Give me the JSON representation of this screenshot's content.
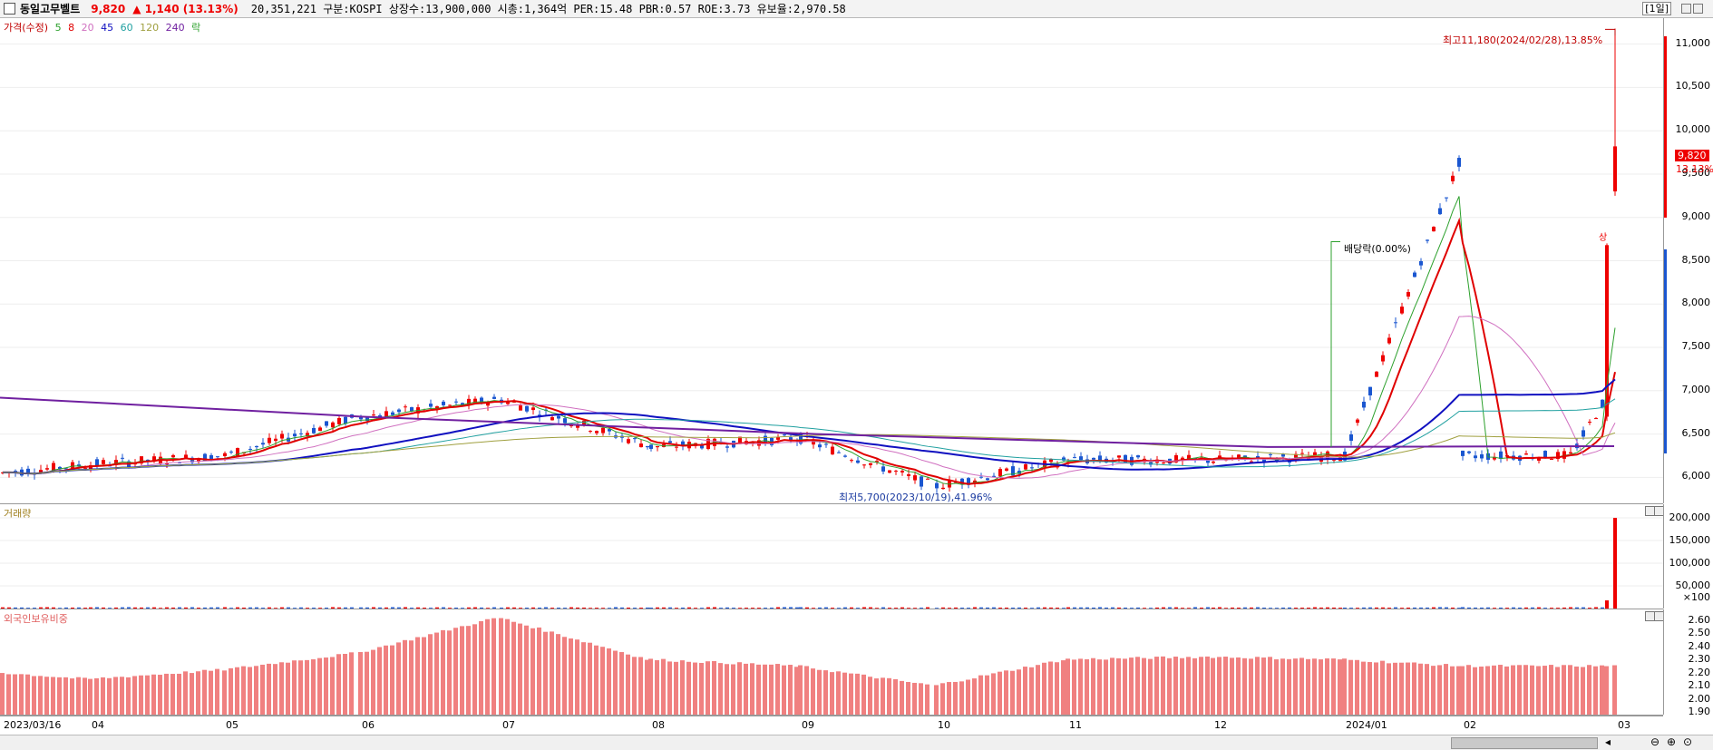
{
  "header": {
    "name": "동일고무벨트",
    "price": "9,820",
    "change": "▲ 1,140 (13.13%)",
    "info": "20,351,221  구분:KOSPI 상장수:13,900,000 시총:1,364억 PER:15.48 PBR:0.57 ROE:3.73 유보율:2,970.58",
    "period": "[1일]"
  },
  "price_panel": {
    "legend": {
      "title": "가격(수정)",
      "ma": [
        {
          "label": "5",
          "color": "#2ca02c"
        },
        {
          "label": "8",
          "color": "#e00000"
        },
        {
          "label": "20",
          "color": "#d070c0"
        },
        {
          "label": "45",
          "color": "#1010c0"
        },
        {
          "label": "60",
          "color": "#20a0a0"
        },
        {
          "label": "120",
          "color": "#a0a040"
        },
        {
          "label": "240",
          "color": "#7020a0"
        }
      ],
      "suffix": "락"
    },
    "ticks": [
      "11,000",
      "10,500",
      "10,000",
      "9,500",
      "9,000",
      "8,500",
      "8,000",
      "7,500",
      "7,000",
      "6,500",
      "6,000"
    ],
    "tick_values": [
      11000,
      10500,
      10000,
      9500,
      9000,
      8500,
      8000,
      7500,
      7000,
      6500,
      6000
    ],
    "high_label": "최고11,180(2024/02/28),13.85%",
    "low_label": "최저5,700(2023/10/19),41.96%",
    "dividend_label": "배당락(0.00%)",
    "current_price": "9,820",
    "current_pct": "13.13%",
    "up_mark": "상"
  },
  "volume_panel": {
    "legend": "거래량",
    "ticks": [
      "200,000",
      "150,000",
      "100,000",
      "50,000",
      "×100"
    ],
    "tick_values": [
      200000,
      150000,
      100000,
      50000
    ]
  },
  "foreign_panel": {
    "legend": "외국인보유비중",
    "ticks": [
      "2.60",
      "2.50",
      "2.40",
      "2.30",
      "2.20",
      "2.10",
      "2.00",
      "1.90"
    ],
    "tick_values": [
      2.6,
      2.5,
      2.4,
      2.3,
      2.2,
      2.1,
      2.0,
      1.9
    ]
  },
  "x_axis": [
    "2023/03/16",
    "04",
    "05",
    "06",
    "07",
    "08",
    "09",
    "10",
    "11",
    "12",
    "2024/01",
    "02",
    "03"
  ],
  "chart_data": {
    "type": "candlestick",
    "x": [
      "2023/03",
      "2023/04",
      "2023/05",
      "2023/06",
      "2023/07",
      "2023/08",
      "2023/09",
      "2023/10",
      "2023/11",
      "2023/12",
      "2024/01",
      "2024/02"
    ],
    "close": [
      6050,
      6150,
      6250,
      6700,
      6900,
      6350,
      6450,
      5900,
      6200,
      6200,
      6250,
      9820
    ],
    "volume": [
      2000,
      1500,
      2000,
      3000,
      2500,
      1500,
      1500,
      2000,
      3000,
      1500,
      1500,
      200000
    ],
    "foreign_ratio": [
      2.2,
      2.15,
      2.22,
      2.35,
      2.62,
      2.3,
      2.25,
      2.1,
      2.3,
      2.32,
      2.3,
      2.25
    ],
    "ylim": [
      5700,
      11300
    ],
    "high": 11180,
    "low": 5700
  }
}
